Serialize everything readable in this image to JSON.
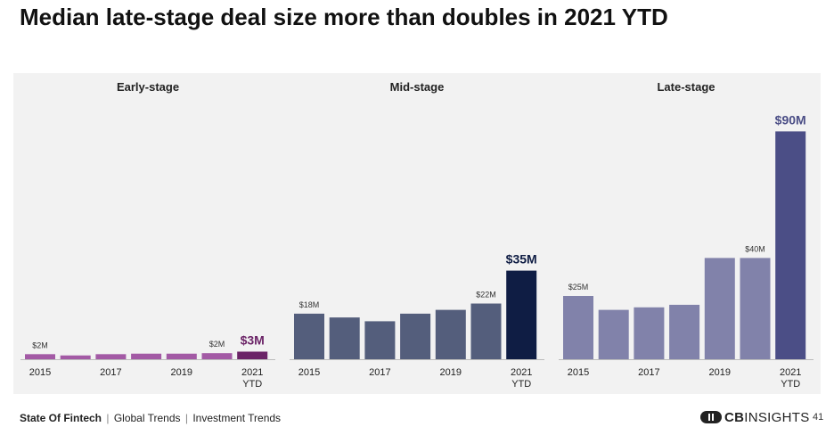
{
  "title": "Median late-stage deal size more than doubles in 2021 YTD",
  "chart_data": [
    {
      "type": "bar",
      "title": "Early-stage",
      "categories": [
        "2015",
        "2016",
        "2017",
        "2018",
        "2019",
        "2020",
        "2021 YTD"
      ],
      "tick_labels": [
        "2015",
        "",
        "2017",
        "",
        "2019",
        "",
        "2021|YTD"
      ],
      "values": [
        2,
        1.5,
        2,
        2.2,
        2.2,
        2.4,
        3
      ],
      "value_labels": [
        "$2M",
        "",
        "",
        "",
        "",
        "$2M",
        "$3M"
      ],
      "ylim": [
        0,
        100
      ],
      "xlabel": "",
      "ylabel": "",
      "colors": {
        "bar": "#a35aa5",
        "highlight": "#6b2467"
      }
    },
    {
      "type": "bar",
      "title": "Mid-stage",
      "categories": [
        "2015",
        "2016",
        "2017",
        "2018",
        "2019",
        "2020",
        "2021 YTD"
      ],
      "tick_labels": [
        "2015",
        "",
        "2017",
        "",
        "2019",
        "",
        "2021|YTD"
      ],
      "values": [
        18,
        16.5,
        15,
        18,
        19.5,
        22,
        35
      ],
      "value_labels": [
        "$18M",
        "",
        "",
        "",
        "",
        "$22M",
        "$35M"
      ],
      "ylim": [
        0,
        100
      ],
      "xlabel": "",
      "ylabel": "",
      "colors": {
        "bar": "#545e7c",
        "highlight": "#0f1d44"
      }
    },
    {
      "type": "bar",
      "title": "Late-stage",
      "categories": [
        "2015",
        "2016",
        "2017",
        "2018",
        "2019",
        "2020",
        "2021 YTD"
      ],
      "tick_labels": [
        "2015",
        "",
        "2017",
        "",
        "2019",
        "",
        "2021|YTD"
      ],
      "values": [
        25,
        19.5,
        20.5,
        21.5,
        40,
        40,
        90
      ],
      "value_labels": [
        "$25M",
        "",
        "",
        "",
        "",
        "$40M",
        "$90M"
      ],
      "ylim": [
        0,
        100
      ],
      "xlabel": "",
      "ylabel": "",
      "colors": {
        "bar": "#8182aa",
        "highlight": "#4b4e86"
      }
    }
  ],
  "footer": {
    "brand": "State Of Fintech",
    "trail": [
      "Global Trends",
      "Investment Trends"
    ]
  },
  "logo": {
    "text_bold": "CB",
    "text": "INSIGHTS"
  },
  "page_number": "41",
  "colors": {
    "panel_bg": "#f2f2f2",
    "axis": "#bbbbbb",
    "text": "#222222",
    "title": "#111111"
  }
}
